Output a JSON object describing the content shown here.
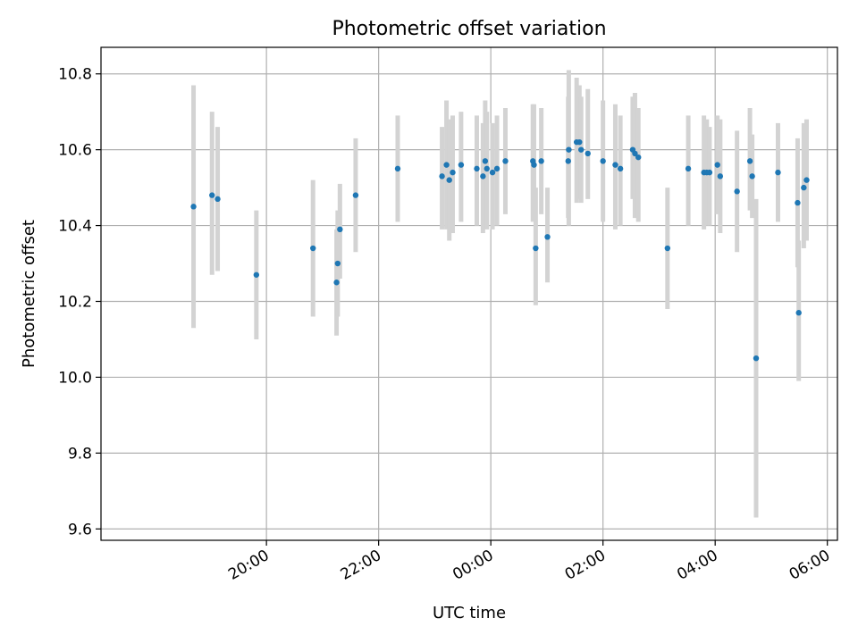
{
  "chart_data": {
    "type": "scatter",
    "title": "Photometric offset variation",
    "xlabel": "UTC time",
    "ylabel": "Photometric offset",
    "xlim_hours": [
      -6.95,
      6.18
    ],
    "ylim": [
      9.57,
      10.87
    ],
    "grid": true,
    "xticks": [
      {
        "hours": -4,
        "label": "20:00"
      },
      {
        "hours": -2,
        "label": "22:00"
      },
      {
        "hours": 0,
        "label": "00:00"
      },
      {
        "hours": 2,
        "label": "02:00"
      },
      {
        "hours": 4,
        "label": "04:00"
      },
      {
        "hours": 6,
        "label": "06:00"
      }
    ],
    "yticks": [
      {
        "value": 9.6,
        "label": "9.6"
      },
      {
        "value": 9.8,
        "label": "9.8"
      },
      {
        "value": 10.0,
        "label": "10.0"
      },
      {
        "value": 10.2,
        "label": "10.2"
      },
      {
        "value": 10.4,
        "label": "10.4"
      },
      {
        "value": 10.6,
        "label": "10.6"
      },
      {
        "value": 10.8,
        "label": "10.8"
      }
    ],
    "series": [
      {
        "name": "photometric offset",
        "color": "#1f77b4",
        "errorbar_color": "#d3d3d3",
        "points": [
          {
            "t": -5.3,
            "y": 10.45,
            "lo": 10.13,
            "hi": 10.77
          },
          {
            "t": -4.97,
            "y": 10.48,
            "lo": 10.27,
            "hi": 10.7
          },
          {
            "t": -4.87,
            "y": 10.47,
            "lo": 10.28,
            "hi": 10.66
          },
          {
            "t": -4.18,
            "y": 10.27,
            "lo": 10.1,
            "hi": 10.44
          },
          {
            "t": -3.17,
            "y": 10.34,
            "lo": 10.16,
            "hi": 10.52
          },
          {
            "t": -2.75,
            "y": 10.25,
            "lo": 10.11,
            "hi": 10.39
          },
          {
            "t": -2.73,
            "y": 10.3,
            "lo": 10.16,
            "hi": 10.44
          },
          {
            "t": -2.69,
            "y": 10.39,
            "lo": 10.26,
            "hi": 10.51
          },
          {
            "t": -2.41,
            "y": 10.48,
            "lo": 10.33,
            "hi": 10.63
          },
          {
            "t": -1.66,
            "y": 10.55,
            "lo": 10.41,
            "hi": 10.69
          },
          {
            "t": -0.87,
            "y": 10.53,
            "lo": 10.39,
            "hi": 10.66
          },
          {
            "t": -0.79,
            "y": 10.56,
            "lo": 10.39,
            "hi": 10.73
          },
          {
            "t": -0.74,
            "y": 10.52,
            "lo": 10.36,
            "hi": 10.68
          },
          {
            "t": -0.68,
            "y": 10.54,
            "lo": 10.38,
            "hi": 10.69
          },
          {
            "t": -0.53,
            "y": 10.56,
            "lo": 10.41,
            "hi": 10.7
          },
          {
            "t": -0.25,
            "y": 10.55,
            "lo": 10.4,
            "hi": 10.69
          },
          {
            "t": -0.14,
            "y": 10.53,
            "lo": 10.38,
            "hi": 10.67
          },
          {
            "t": -0.1,
            "y": 10.57,
            "lo": 10.4,
            "hi": 10.73
          },
          {
            "t": -0.07,
            "y": 10.55,
            "lo": 10.39,
            "hi": 10.7
          },
          {
            "t": 0.03,
            "y": 10.54,
            "lo": 10.39,
            "hi": 10.67
          },
          {
            "t": 0.11,
            "y": 10.55,
            "lo": 10.4,
            "hi": 10.69
          },
          {
            "t": 0.26,
            "y": 10.57,
            "lo": 10.43,
            "hi": 10.71
          },
          {
            "t": 0.75,
            "y": 10.57,
            "lo": 10.41,
            "hi": 10.72
          },
          {
            "t": 0.8,
            "y": 10.34,
            "lo": 10.19,
            "hi": 10.5
          },
          {
            "t": 0.77,
            "y": 10.56,
            "lo": 10.42,
            "hi": 10.72
          },
          {
            "t": 0.9,
            "y": 10.57,
            "lo": 10.43,
            "hi": 10.71
          },
          {
            "t": 1.01,
            "y": 10.37,
            "lo": 10.25,
            "hi": 10.5
          },
          {
            "t": 1.38,
            "y": 10.57,
            "lo": 10.42,
            "hi": 10.74
          },
          {
            "t": 1.39,
            "y": 10.6,
            "lo": 10.4,
            "hi": 10.81
          },
          {
            "t": 1.53,
            "y": 10.62,
            "lo": 10.46,
            "hi": 10.79
          },
          {
            "t": 1.58,
            "y": 10.62,
            "lo": 10.47,
            "hi": 10.77
          },
          {
            "t": 1.61,
            "y": 10.6,
            "lo": 10.46,
            "hi": 10.74
          },
          {
            "t": 1.73,
            "y": 10.59,
            "lo": 10.47,
            "hi": 10.76
          },
          {
            "t": 2.0,
            "y": 10.57,
            "lo": 10.41,
            "hi": 10.73
          },
          {
            "t": 2.22,
            "y": 10.56,
            "lo": 10.39,
            "hi": 10.72
          },
          {
            "t": 2.31,
            "y": 10.55,
            "lo": 10.4,
            "hi": 10.69
          },
          {
            "t": 2.53,
            "y": 10.6,
            "lo": 10.47,
            "hi": 10.74
          },
          {
            "t": 2.57,
            "y": 10.59,
            "lo": 10.42,
            "hi": 10.75
          },
          {
            "t": 2.63,
            "y": 10.58,
            "lo": 10.41,
            "hi": 10.71
          },
          {
            "t": 3.15,
            "y": 10.34,
            "lo": 10.18,
            "hi": 10.5
          },
          {
            "t": 3.52,
            "y": 10.55,
            "lo": 10.4,
            "hi": 10.69
          },
          {
            "t": 3.8,
            "y": 10.54,
            "lo": 10.39,
            "hi": 10.69
          },
          {
            "t": 3.85,
            "y": 10.54,
            "lo": 10.4,
            "hi": 10.68
          },
          {
            "t": 3.9,
            "y": 10.54,
            "lo": 10.4,
            "hi": 10.66
          },
          {
            "t": 4.04,
            "y": 10.56,
            "lo": 10.43,
            "hi": 10.69
          },
          {
            "t": 4.09,
            "y": 10.53,
            "lo": 10.38,
            "hi": 10.68
          },
          {
            "t": 4.39,
            "y": 10.49,
            "lo": 10.33,
            "hi": 10.65
          },
          {
            "t": 4.62,
            "y": 10.57,
            "lo": 10.44,
            "hi": 10.71
          },
          {
            "t": 4.66,
            "y": 10.53,
            "lo": 10.42,
            "hi": 10.64
          },
          {
            "t": 4.73,
            "y": 10.05,
            "lo": 9.63,
            "hi": 10.47
          },
          {
            "t": 5.12,
            "y": 10.54,
            "lo": 10.41,
            "hi": 10.67
          },
          {
            "t": 5.47,
            "y": 10.46,
            "lo": 10.29,
            "hi": 10.63
          },
          {
            "t": 5.49,
            "y": 10.17,
            "lo": 9.99,
            "hi": 10.36
          },
          {
            "t": 5.58,
            "y": 10.5,
            "lo": 10.34,
            "hi": 10.67
          },
          {
            "t": 5.63,
            "y": 10.52,
            "lo": 10.36,
            "hi": 10.68
          }
        ]
      }
    ]
  }
}
